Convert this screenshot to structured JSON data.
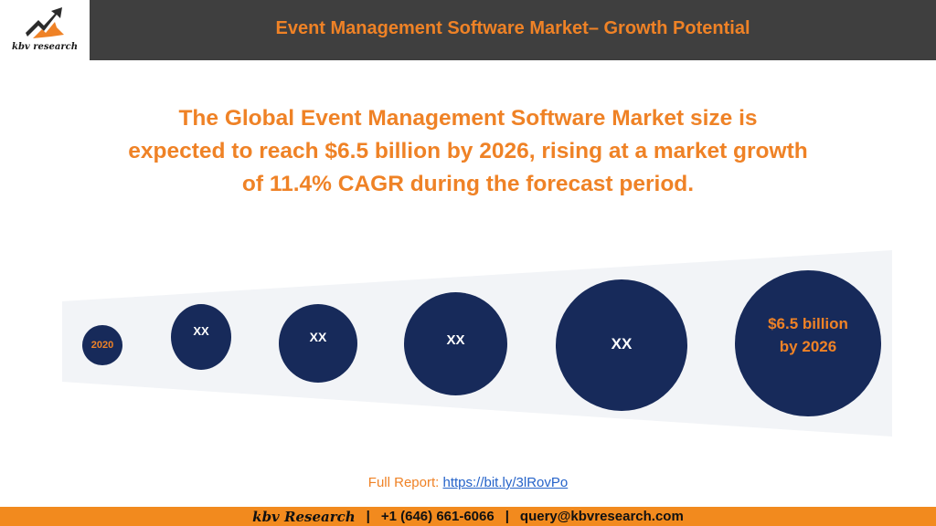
{
  "header": {
    "logo_text": "kbv research",
    "title": "Event Management Software Market– Growth Potential"
  },
  "headline": "The Global Event Management Software Market size is expected to reach $6.5 billion by 2026, rising at a market growth of 11.4% CAGR during the forecast period.",
  "timeline": {
    "start_label": "2020",
    "steps": [
      "XX",
      "XX",
      "XX",
      "XX"
    ],
    "end_line1": "$6.5 billion",
    "end_line2": "by 2026"
  },
  "report": {
    "label": "Full Report:",
    "link_text": "https://bit.ly/3lRovPo"
  },
  "footer": {
    "brand": "kbv Research",
    "separator": "|",
    "phone": "+1 (646) 661-6066",
    "email": "query@kbvresearch.com"
  },
  "colors": {
    "accent": "#ef8226",
    "header_bg": "#3f3f3f",
    "circle": "#172a5a",
    "footer_bg": "#f28a1e",
    "link": "#2563c9"
  }
}
